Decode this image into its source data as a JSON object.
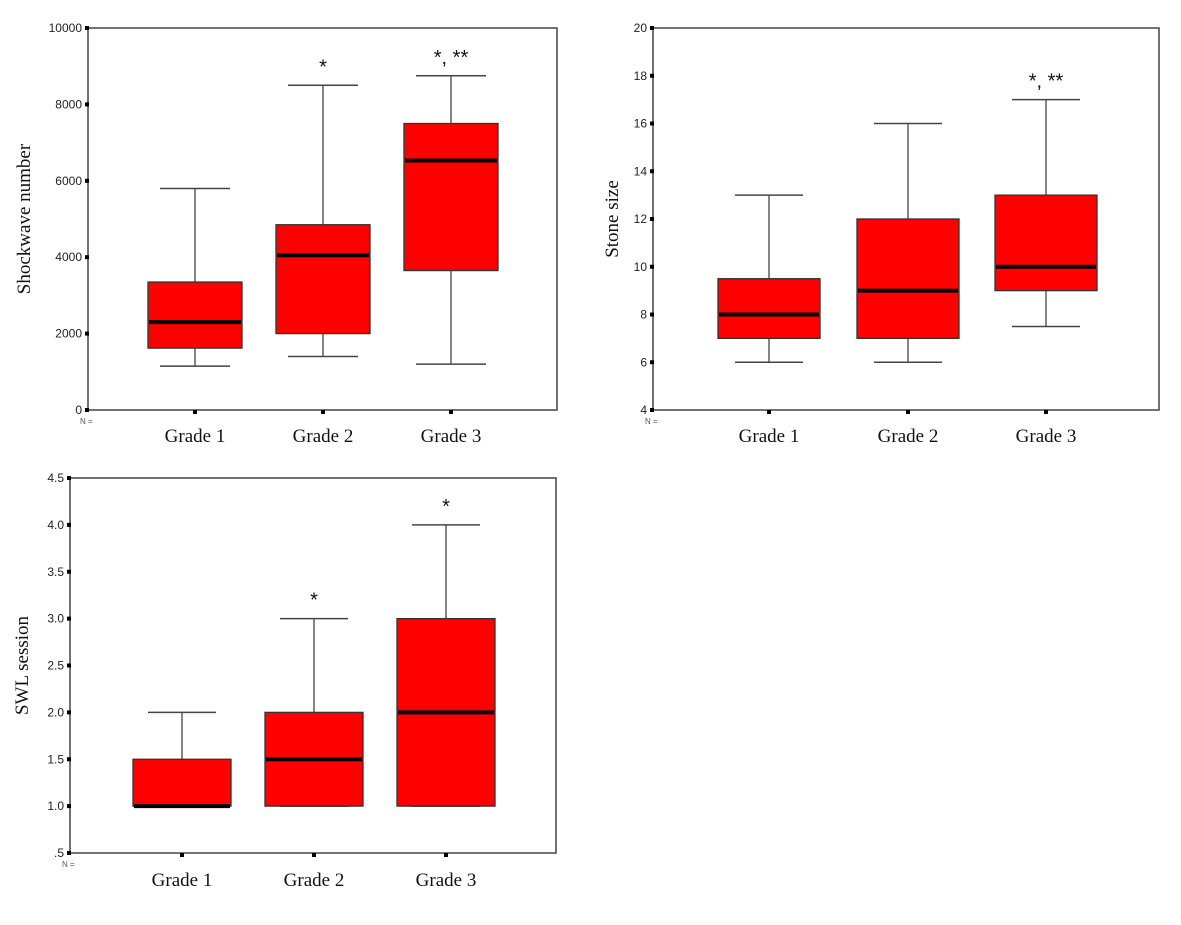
{
  "style": {
    "box_fill": "#ff0000",
    "box_stroke": "#333333",
    "median_color": "#000000",
    "frame_color": "#444444"
  },
  "chart_data": [
    {
      "id": "shockwave",
      "type": "boxplot",
      "ylabel": "Shockwave number",
      "n_label": "N =",
      "ylim": [
        0,
        10000
      ],
      "yticks": [
        0,
        2000,
        4000,
        6000,
        8000,
        10000
      ],
      "ytick_labels": [
        "0",
        "2000",
        "4000",
        "6000",
        "8000",
        "10000"
      ],
      "categories": [
        "Grade 1",
        "Grade 2",
        "Grade 3"
      ],
      "boxes": [
        {
          "whisker_low": 1150,
          "q1": 1620,
          "median": 2300,
          "q3": 3350,
          "whisker_high": 5800,
          "annotation": ""
        },
        {
          "whisker_low": 1400,
          "q1": 2000,
          "median": 4050,
          "q3": 4850,
          "whisker_high": 8500,
          "annotation": "*"
        },
        {
          "whisker_low": 1200,
          "q1": 3650,
          "median": 6530,
          "q3": 7500,
          "whisker_high": 8750,
          "annotation": "*, **"
        }
      ],
      "grid": false
    },
    {
      "id": "stone",
      "type": "boxplot",
      "ylabel": "Stone size",
      "n_label": "N =",
      "ylim": [
        4,
        20
      ],
      "yticks": [
        4,
        6,
        8,
        10,
        12,
        14,
        16,
        18,
        20
      ],
      "ytick_labels": [
        "4",
        "6",
        "8",
        "10",
        "12",
        "14",
        "16",
        "18",
        "20"
      ],
      "categories": [
        "Grade 1",
        "Grade 2",
        "Grade 3"
      ],
      "boxes": [
        {
          "whisker_low": 6,
          "q1": 7,
          "median": 8,
          "q3": 9.5,
          "whisker_high": 13,
          "annotation": ""
        },
        {
          "whisker_low": 6,
          "q1": 7,
          "median": 9,
          "q3": 12,
          "whisker_high": 16,
          "annotation": ""
        },
        {
          "whisker_low": 7.5,
          "q1": 9,
          "median": 10,
          "q3": 13,
          "whisker_high": 17,
          "annotation": "*, **"
        }
      ],
      "grid": false
    },
    {
      "id": "swl",
      "type": "boxplot",
      "ylabel": "SWL session",
      "n_label": "N =",
      "ylim": [
        0.5,
        4.5
      ],
      "yticks": [
        0.5,
        1.0,
        1.5,
        2.0,
        2.5,
        3.0,
        3.5,
        4.0,
        4.5
      ],
      "ytick_labels": [
        ".5",
        "1.0",
        "1.5",
        "2.0",
        "2.5",
        "3.0",
        "3.5",
        "4.0",
        "4.5"
      ],
      "categories": [
        "Grade 1",
        "Grade 2",
        "Grade 3"
      ],
      "boxes": [
        {
          "whisker_low": 1.0,
          "q1": 1.0,
          "median": 1.0,
          "q3": 1.5,
          "whisker_high": 2.0,
          "annotation": ""
        },
        {
          "whisker_low": 1.0,
          "q1": 1.0,
          "median": 1.5,
          "q3": 2.0,
          "whisker_high": 3.0,
          "annotation": "*"
        },
        {
          "whisker_low": 1.0,
          "q1": 1.0,
          "median": 2.0,
          "q3": 3.0,
          "whisker_high": 4.0,
          "annotation": "*"
        }
      ],
      "grid": false
    }
  ]
}
